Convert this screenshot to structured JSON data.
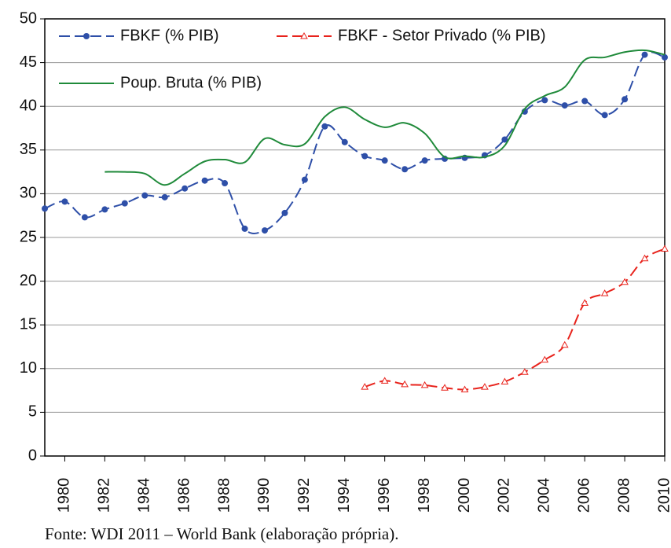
{
  "chart_data": {
    "type": "line",
    "source": "Fonte: WDI 2011 – World Bank (elaboração própria).",
    "x": [
      1979,
      1980,
      1981,
      1982,
      1983,
      1984,
      1985,
      1986,
      1987,
      1988,
      1989,
      1990,
      1991,
      1992,
      1993,
      1994,
      1995,
      1996,
      1997,
      1998,
      1999,
      2000,
      2001,
      2002,
      2003,
      2004,
      2005,
      2006,
      2007,
      2008,
      2009,
      2010
    ],
    "series": [
      {
        "name": "FBKF (% PIB)",
        "color": "#2e4fa8",
        "marker": "circle",
        "dashed": true,
        "values": [
          28.3,
          29.1,
          27.3,
          28.2,
          28.9,
          29.8,
          29.6,
          30.6,
          31.5,
          31.2,
          26.0,
          25.8,
          27.8,
          31.6,
          37.7,
          35.9,
          34.3,
          33.8,
          32.8,
          33.8,
          34.0,
          34.1,
          34.4,
          36.2,
          39.4,
          40.7,
          40.1,
          40.6,
          39.0,
          40.8,
          45.9,
          45.6
        ]
      },
      {
        "name": "FBKF - Setor Privado (% PIB)",
        "color": "#e8231c",
        "marker": "triangle",
        "dashed": true,
        "values": [
          null,
          null,
          null,
          null,
          null,
          null,
          null,
          null,
          null,
          null,
          null,
          null,
          null,
          null,
          null,
          null,
          7.9,
          8.6,
          8.2,
          8.1,
          7.8,
          7.6,
          7.9,
          8.5,
          9.6,
          11.0,
          12.7,
          17.5,
          18.6,
          19.9,
          22.6,
          23.7
        ]
      },
      {
        "name": "Poup. Bruta (% PIB)",
        "color": "#1f8a3a",
        "marker": "none",
        "dashed": false,
        "values": [
          null,
          null,
          null,
          32.5,
          32.5,
          32.3,
          31.0,
          32.3,
          33.7,
          33.9,
          33.6,
          36.3,
          35.6,
          35.7,
          38.8,
          39.9,
          38.5,
          37.6,
          38.1,
          36.9,
          34.2,
          34.3,
          34.2,
          35.5,
          39.7,
          41.2,
          42.2,
          45.3,
          45.6,
          46.2,
          46.4,
          45.9
        ]
      }
    ],
    "xlim": [
      1979,
      2010
    ],
    "xticks": [
      1980,
      1982,
      1984,
      1986,
      1988,
      1990,
      1992,
      1994,
      1996,
      1998,
      2000,
      2002,
      2004,
      2006,
      2008,
      2010
    ],
    "ylim": [
      0,
      50
    ],
    "yticks": [
      0,
      5,
      10,
      15,
      20,
      25,
      30,
      35,
      40,
      45,
      50
    ],
    "grid": true
  }
}
